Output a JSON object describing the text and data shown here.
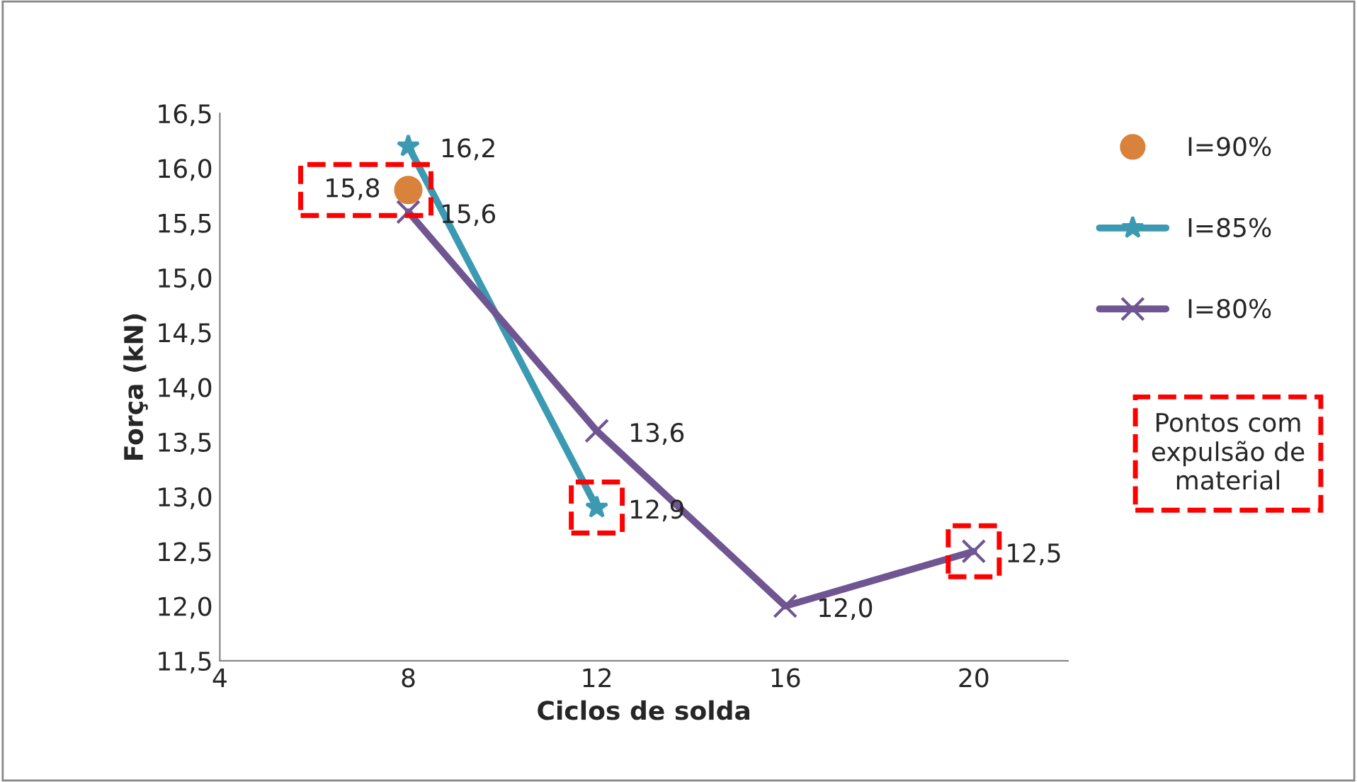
{
  "chart_data": {
    "type": "line",
    "xlabel": "Ciclos de solda",
    "ylabel": "Força (kN)",
    "xlim": [
      4,
      22
    ],
    "xticks": [
      4,
      8,
      12,
      16,
      20
    ],
    "ylim": [
      11.5,
      16.5
    ],
    "yticks": [
      {
        "value": 11.5,
        "label": "11,5"
      },
      {
        "value": 12.0,
        "label": "12,0"
      },
      {
        "value": 12.5,
        "label": "12,5"
      },
      {
        "value": 13.0,
        "label": "13,0"
      },
      {
        "value": 13.5,
        "label": "13,5"
      },
      {
        "value": 14.0,
        "label": "14,0"
      },
      {
        "value": 14.5,
        "label": "14,5"
      },
      {
        "value": 15.0,
        "label": "15,0"
      },
      {
        "value": 15.5,
        "label": "15,5"
      },
      {
        "value": 16.0,
        "label": "16,0"
      },
      {
        "value": 16.5,
        "label": "16,5"
      }
    ],
    "grid": false,
    "legend": "right",
    "series": [
      {
        "name": "I=90%",
        "type": "scatter",
        "marker": "circle",
        "color": "#d9823b",
        "x": [
          8
        ],
        "values": [
          15.8
        ],
        "value_labels": [
          "15,8"
        ]
      },
      {
        "name": "I=85%",
        "marker": "star",
        "color": "#3b9ab2",
        "x": [
          8,
          12
        ],
        "values": [
          16.2,
          12.9
        ],
        "value_labels": [
          "16,2",
          "12,9"
        ]
      },
      {
        "name": "I=80%",
        "marker": "cross",
        "color": "#6f5592",
        "x": [
          8,
          12,
          16,
          20
        ],
        "values": [
          15.6,
          13.6,
          12.0,
          12.5
        ],
        "value_labels": [
          "15,6",
          "13,6",
          "12,0",
          "12,5"
        ]
      }
    ],
    "annotations": [
      "Pontos com expulsão de material"
    ]
  }
}
